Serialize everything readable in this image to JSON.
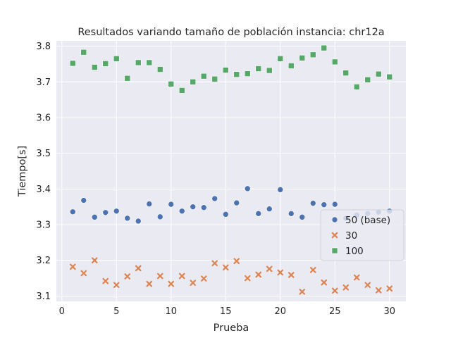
{
  "chart_data": {
    "type": "scatter",
    "title": "Resultados variando tamaño de población instancia: chr12a",
    "xlabel": "Prueba",
    "ylabel": "Tiempo[s]",
    "xlim": [
      -0.5,
      31.5
    ],
    "ylim": [
      3.085,
      3.815
    ],
    "xticks": [
      0,
      5,
      10,
      15,
      20,
      25,
      30
    ],
    "yticks": [
      3.1,
      3.2,
      3.3,
      3.4,
      3.5,
      3.6,
      3.7,
      3.8
    ],
    "xtick_labels": [
      "0",
      "5",
      "10",
      "15",
      "20",
      "25",
      "30"
    ],
    "ytick_labels": [
      "3.1",
      "3.2",
      "3.3",
      "3.4",
      "3.5",
      "3.6",
      "3.7",
      "3.8"
    ],
    "grid": true,
    "legend_position": "center-right",
    "background": "#eaeaf2",
    "x": [
      1,
      2,
      3,
      4,
      5,
      6,
      7,
      8,
      9,
      10,
      11,
      12,
      13,
      14,
      15,
      16,
      17,
      18,
      19,
      20,
      21,
      22,
      23,
      24,
      25,
      26,
      27,
      28,
      29,
      30
    ],
    "series": [
      {
        "name": "50 (base)",
        "marker": "circle",
        "color": "#4c72b0",
        "values": [
          3.336,
          3.368,
          3.321,
          3.334,
          3.338,
          3.318,
          3.31,
          3.358,
          3.322,
          3.357,
          3.338,
          3.35,
          3.348,
          3.373,
          3.329,
          3.361,
          3.401,
          3.331,
          3.344,
          3.398,
          3.331,
          3.321,
          3.36,
          3.356,
          3.357,
          3.318,
          3.327,
          3.331,
          3.335,
          3.338
        ]
      },
      {
        "name": "30",
        "marker": "x",
        "color": "#dd8452",
        "values": [
          3.182,
          3.164,
          3.2,
          3.142,
          3.131,
          3.155,
          3.178,
          3.134,
          3.156,
          3.134,
          3.156,
          3.137,
          3.149,
          3.192,
          3.18,
          3.198,
          3.15,
          3.16,
          3.176,
          3.166,
          3.159,
          3.112,
          3.173,
          3.138,
          3.115,
          3.124,
          3.152,
          3.131,
          3.116,
          3.121
        ]
      },
      {
        "name": "100",
        "marker": "square",
        "color": "#55a868",
        "values": [
          3.752,
          3.783,
          3.741,
          3.751,
          3.765,
          3.71,
          3.754,
          3.754,
          3.735,
          3.694,
          3.676,
          3.7,
          3.716,
          3.708,
          3.733,
          3.721,
          3.723,
          3.737,
          3.732,
          3.765,
          3.745,
          3.767,
          3.776,
          3.795,
          3.756,
          3.725,
          3.686,
          3.706,
          3.722,
          3.714
        ]
      }
    ]
  }
}
